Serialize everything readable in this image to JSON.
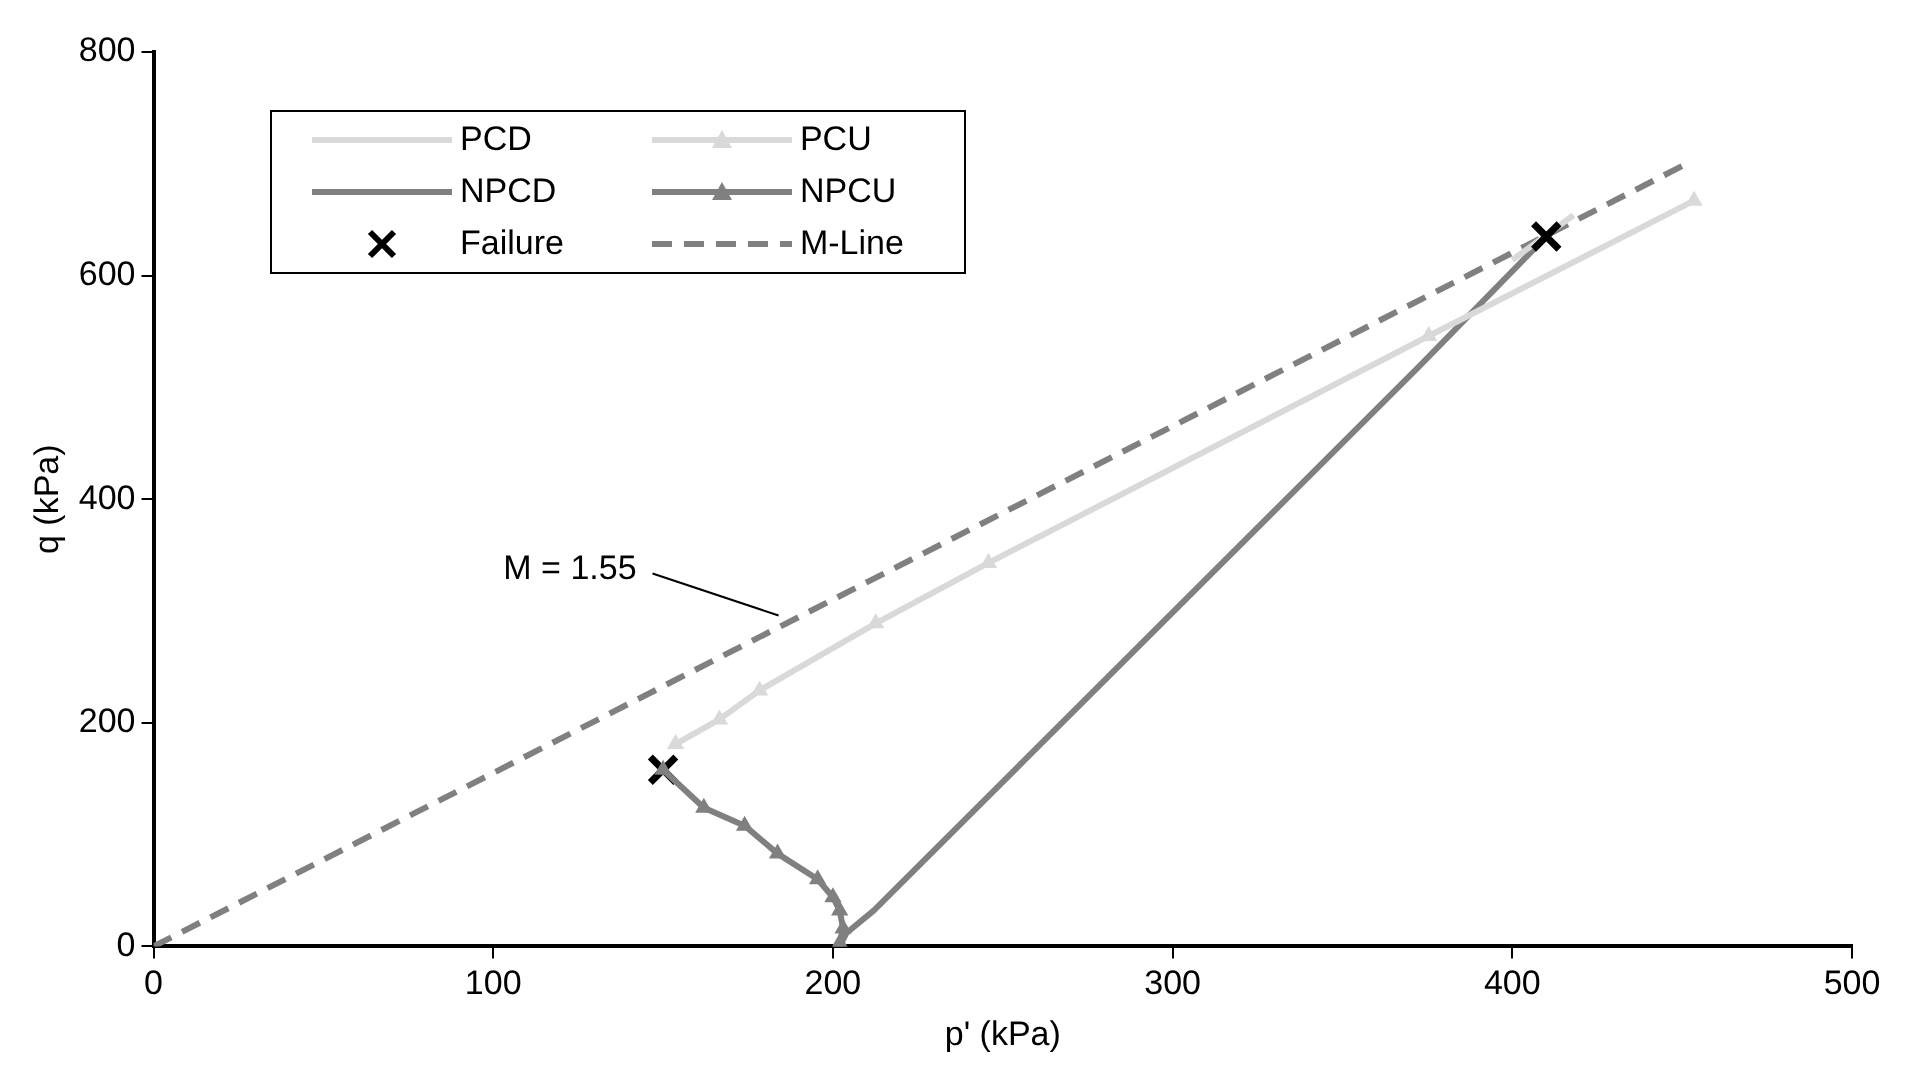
{
  "chart_data": {
    "type": "line",
    "xlabel": "p' (kPa)",
    "ylabel": "q (kPa)",
    "xlim": [
      0,
      500
    ],
    "xticks": [
      0,
      100,
      200,
      300,
      400,
      500
    ],
    "ylim": [
      0,
      800
    ],
    "yticks": [
      0,
      200,
      400,
      600,
      800
    ],
    "grid": false,
    "legend": "top left",
    "annotations": [
      {
        "text": "M = 1.55",
        "x": 184,
        "y": 296
      }
    ],
    "series": [
      {
        "name": "PCD",
        "color": "#d9d9d9",
        "marker": "none",
        "line_style": "solid",
        "x": [
          400,
          418
        ],
        "values": [
          614,
          654
        ]
      },
      {
        "name": "PCU",
        "color": "#d9d9d9",
        "marker": "triangle",
        "line_style": "solid",
        "x": [
          153.7,
          166.6,
          178.4,
          212.6,
          245.8,
          375.4,
          453.5
        ],
        "values": [
          181,
          203,
          229,
          289,
          343,
          546,
          667
        ]
      },
      {
        "name": "NPCD",
        "color": "#808080",
        "marker": "none",
        "line_style": "solid",
        "x": [
          202,
          204,
          212,
          372,
          410
        ],
        "values": [
          0,
          12,
          32,
          517,
          635
        ]
      },
      {
        "name": "NPCU",
        "color": "#808080",
        "marker": "triangle",
        "line_style": "solid",
        "x": [
          202,
          203,
          202,
          200,
          195.5,
          183.7,
          174,
          162,
          150
        ],
        "values": [
          3,
          16,
          32,
          44,
          60,
          83,
          108,
          124,
          158
        ]
      },
      {
        "name": "Failure",
        "type": "scatter",
        "color": "#000000",
        "marker": "cross",
        "x": [
          150,
          410
        ],
        "values": [
          158,
          635
        ]
      },
      {
        "name": "M-Line",
        "color": "#808080",
        "marker": "none",
        "line_style": "dashed",
        "x": [
          0,
          450
        ],
        "values": [
          0,
          698
        ]
      }
    ]
  }
}
